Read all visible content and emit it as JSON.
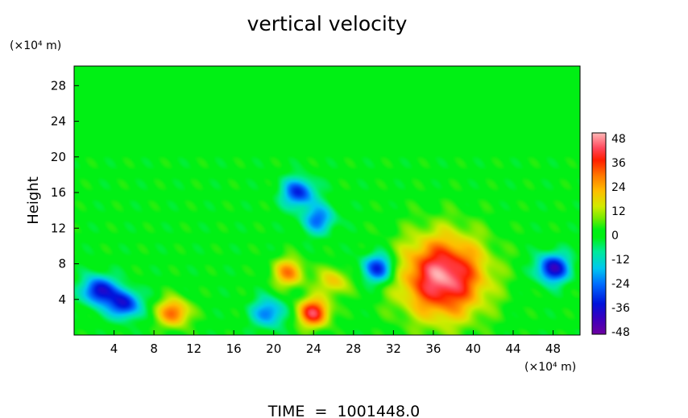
{
  "chart_data": {
    "type": "heatmap",
    "title": "vertical velocity",
    "xlabel": "",
    "ylabel": "Height",
    "x_unit_label": "(×10⁴ m)",
    "y_unit_label": "(×10⁴ m)",
    "footer": "TIME  =  1001448.0",
    "xlim": [
      0,
      50.7
    ],
    "ylim": [
      0,
      30.2
    ],
    "x_ticks": [
      "4",
      "8",
      "12",
      "16",
      "20",
      "24",
      "28",
      "32",
      "36",
      "40",
      "44",
      "48"
    ],
    "x_tick_values": [
      4,
      8,
      12,
      16,
      20,
      24,
      28,
      32,
      36,
      40,
      44,
      48
    ],
    "y_ticks": [
      "4",
      "8",
      "12",
      "16",
      "20",
      "24",
      "28"
    ],
    "y_tick_values": [
      4,
      8,
      12,
      16,
      20,
      24,
      28
    ],
    "colorbar": {
      "ticks": [
        "48",
        "36",
        "24",
        "12",
        "0",
        "-12",
        "-24",
        "-36",
        "-48"
      ],
      "values": [
        48,
        36,
        24,
        12,
        0,
        -12,
        -24,
        -36,
        -48
      ],
      "min": -52,
      "max": 52
    },
    "grid": false,
    "features": [
      {
        "name": "updraft core",
        "x": 37.0,
        "y": 6.5,
        "peak": 50
      },
      {
        "name": "updraft",
        "x": 24.0,
        "y": 2.5,
        "peak": 42
      },
      {
        "name": "updraft",
        "x": 10.0,
        "y": 2.5,
        "peak": 32
      },
      {
        "name": "updraft",
        "x": 21.5,
        "y": 7.0,
        "peak": 28
      },
      {
        "name": "updraft",
        "x": 26.0,
        "y": 6.0,
        "peak": 20
      },
      {
        "name": "downdraft",
        "x": 2.5,
        "y": 5.0,
        "peak": -40
      },
      {
        "name": "downdraft",
        "x": 5.0,
        "y": 3.5,
        "peak": -38
      },
      {
        "name": "downdraft",
        "x": 48.0,
        "y": 7.5,
        "peak": -42
      },
      {
        "name": "downdraft",
        "x": 30.5,
        "y": 7.5,
        "peak": -36
      },
      {
        "name": "downdraft",
        "x": 22.5,
        "y": 16.0,
        "peak": -34
      },
      {
        "name": "downdraft",
        "x": 19.5,
        "y": 2.5,
        "peak": -26
      },
      {
        "name": "downdraft",
        "x": 24.5,
        "y": 13.0,
        "peak": -26
      }
    ]
  }
}
